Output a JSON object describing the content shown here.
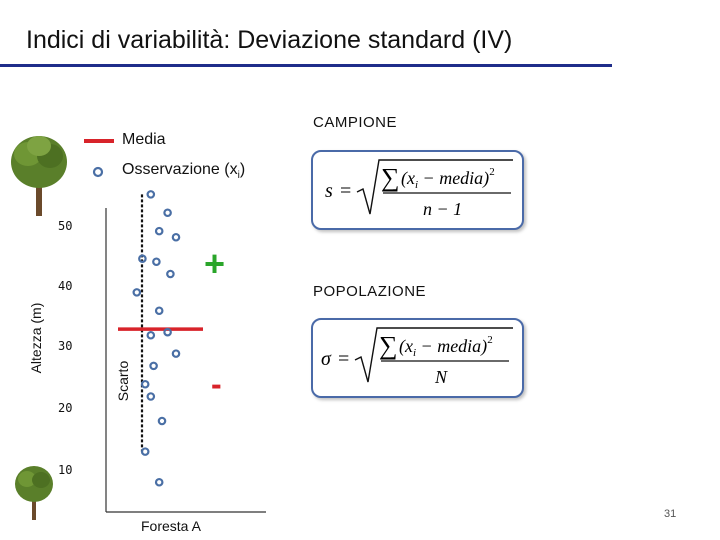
{
  "title": "Indici di variabilità: Deviazione standard (IV)",
  "legend": {
    "mean_label": "Media",
    "obs_label": "Osservazione (x",
    "obs_sub": "i",
    "obs_close": ")"
  },
  "axis": {
    "ylabel": "Altezza (m)",
    "xlabel": "Foresta A",
    "ticks": [
      "50",
      "40",
      "30",
      "20",
      "10"
    ]
  },
  "scarto_label": "Scarto",
  "plus_sign": "+",
  "minus_sign": "-",
  "sections": {
    "sample": "CAMPIONE",
    "population": "POPOLAZIONE"
  },
  "formulas": {
    "sample": {
      "lhs": "s",
      "numerator": "(x",
      "sub": "i",
      "media": " − media)",
      "exp": "2",
      "denominator": "n − 1"
    },
    "population": {
      "lhs": "σ",
      "numerator": "(x",
      "sub": "i",
      "media": " − media)",
      "exp": "2",
      "denominator": "N"
    }
  },
  "page_number": "31",
  "colors": {
    "mean": "#d8232a",
    "plus": "#2aa52a",
    "minus": "#d8232a",
    "point": "#4a6fa5",
    "title_rule": "#1f2d8a"
  },
  "chart_data": {
    "type": "scatter",
    "xlabel": "Foresta A",
    "ylabel": "Altezza (m)",
    "ylim": [
      8,
      54
    ],
    "mean": 33,
    "points": [
      {
        "x": 0.05,
        "y": 55
      },
      {
        "x": 0.35,
        "y": 52
      },
      {
        "x": 0.2,
        "y": 49
      },
      {
        "x": 0.5,
        "y": 48
      },
      {
        "x": -0.1,
        "y": 44.5
      },
      {
        "x": 0.15,
        "y": 44
      },
      {
        "x": 0.4,
        "y": 42
      },
      {
        "x": -0.2,
        "y": 39
      },
      {
        "x": 0.2,
        "y": 36
      },
      {
        "x": 0.35,
        "y": 32.5
      },
      {
        "x": 0.05,
        "y": 32
      },
      {
        "x": 0.5,
        "y": 29
      },
      {
        "x": 0.1,
        "y": 27
      },
      {
        "x": -0.05,
        "y": 24
      },
      {
        "x": 0.05,
        "y": 22
      },
      {
        "x": 0.25,
        "y": 18
      },
      {
        "x": -0.05,
        "y": 13
      },
      {
        "x": 0.2,
        "y": 8
      }
    ],
    "scarto_from": 55,
    "scarto_to": 13
  }
}
